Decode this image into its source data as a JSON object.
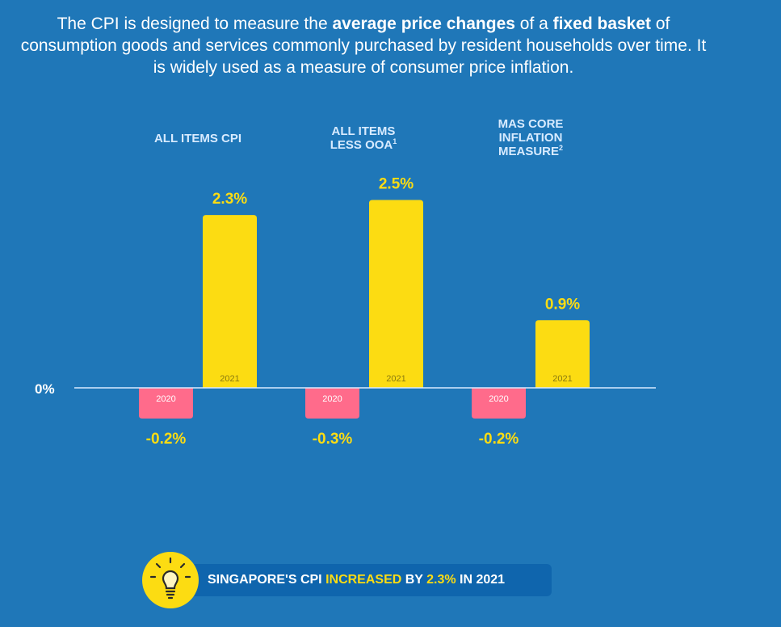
{
  "intro": {
    "part1": "The CPI is designed to measure the ",
    "bold1": "average price changes",
    "part2": " of a ",
    "bold2": "fixed basket",
    "part3": " of consumption goods and services commonly purchased by resident households over time. It is widely used as a measure of consumer price inflation."
  },
  "chart_data": {
    "type": "bar",
    "categories": [
      "ALL ITEMS CPI",
      "ALL ITEMS LESS OOA",
      "MAS CORE INFLATION MEASURE"
    ],
    "category_footnotes": [
      "",
      "1",
      "2"
    ],
    "series": [
      {
        "name": "2020",
        "values": [
          -0.2,
          -0.3,
          -0.2
        ],
        "labels": [
          "-0.2%",
          "-0.3%",
          "-0.2%"
        ],
        "color": "#ff6b8b"
      },
      {
        "name": "2021",
        "values": [
          2.3,
          2.5,
          0.9
        ],
        "labels": [
          "2.3%",
          "2.5%",
          "0.9%"
        ],
        "color": "#fcdc12"
      }
    ],
    "zero_label": "0%",
    "ylim": [
      -0.5,
      2.5
    ],
    "value_label_color": "#fcdc12",
    "axis_color": "#d8ebff"
  },
  "callout": {
    "icon": "lightbulb-icon",
    "text1": "SINGAPORE'S CPI ",
    "hl1": "INCREASED",
    "text2": " BY ",
    "hl2": "2.3%",
    "text3": " IN 2021"
  }
}
